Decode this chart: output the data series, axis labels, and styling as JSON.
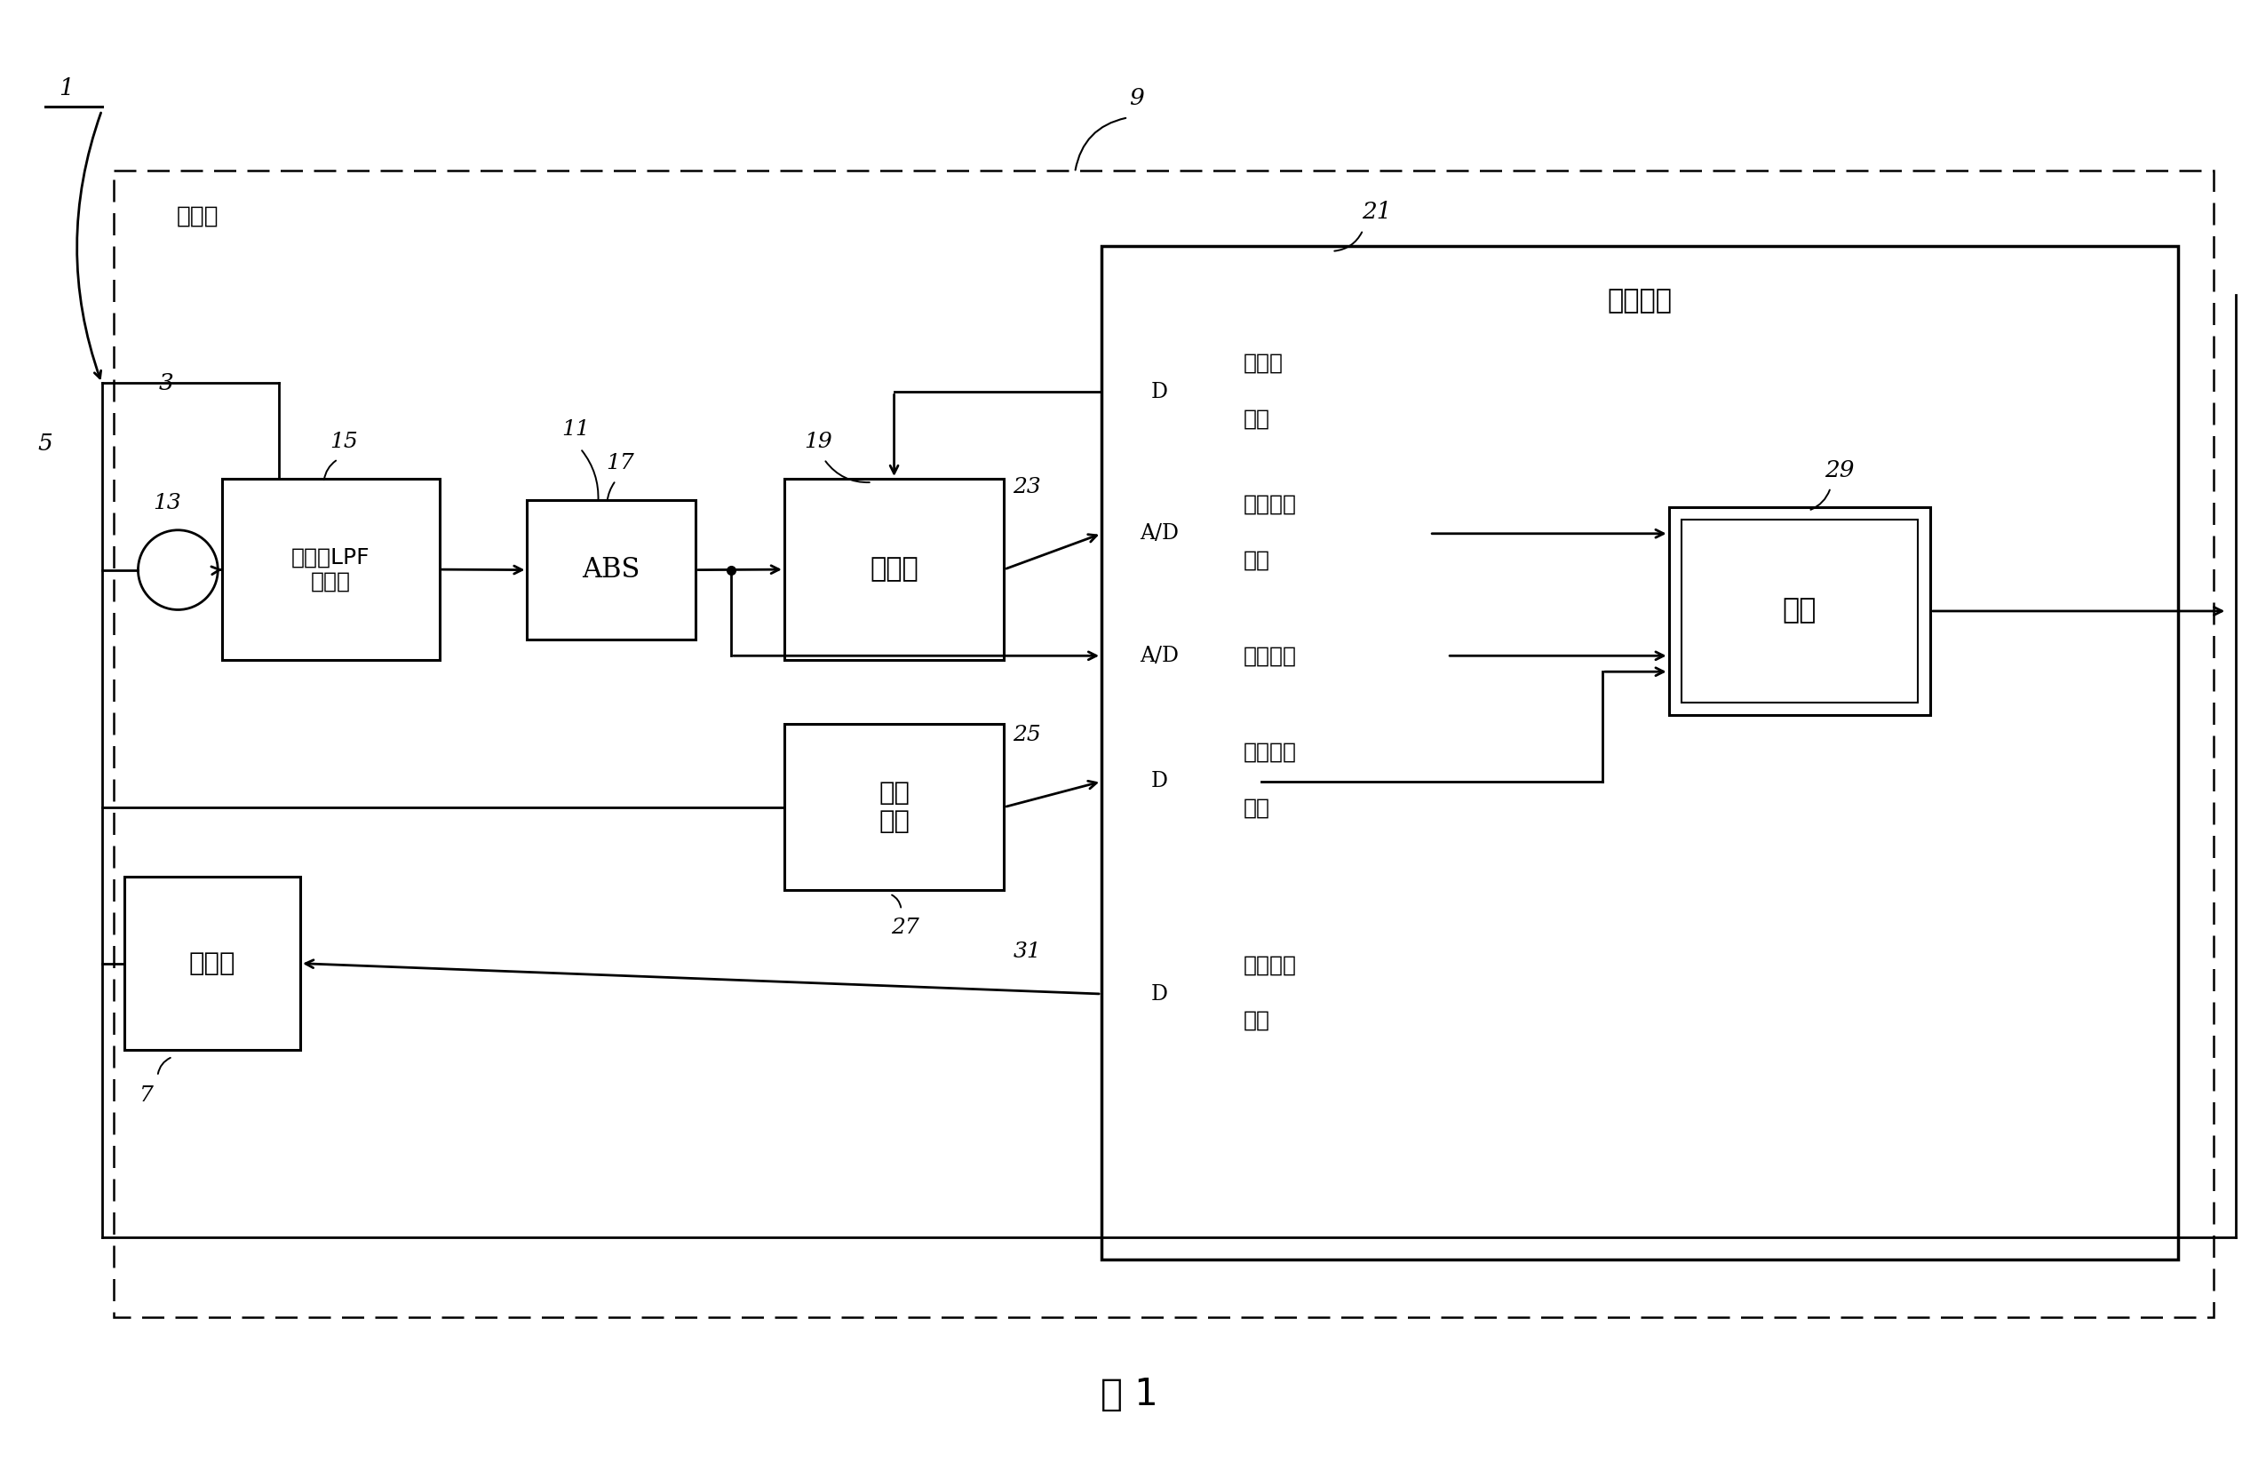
{
  "bg_color": "#ffffff",
  "fig_title": "图 1",
  "circuit_board_label": "电路板",
  "microprocessor_label": "微处理器",
  "box_gain_lpf": "增益与LPF\n滤波器",
  "box_abs": "ABS",
  "box_integrator": "积分器",
  "box_vz": "电压\n过零",
  "box_breaker": "断路器",
  "box_software": "软件",
  "sig1a": "积分器",
  "sig1b": "复位",
  "sig2a": "积分电流",
  "sig2b": "信号",
  "sig3": "电流信号",
  "sig4a": "电压过零",
  "sig4b": "信号",
  "sig5a": "使断路器",
  "sig5b": "跳闸",
  "lbl_1": "1",
  "lbl_3": "3",
  "lbl_5": "5",
  "lbl_7": "7",
  "lbl_9": "9",
  "lbl_11": "11",
  "lbl_13": "13",
  "lbl_15": "15",
  "lbl_17": "17",
  "lbl_19": "19",
  "lbl_21": "21",
  "lbl_23": "23",
  "lbl_25": "25",
  "lbl_27": "27",
  "lbl_29": "29",
  "lbl_31": "31",
  "port_D": "D",
  "port_AD": "A/D"
}
